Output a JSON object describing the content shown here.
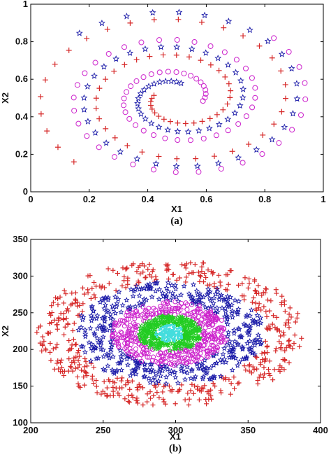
{
  "chart_data": [
    {
      "type": "scatter",
      "pattern": "interleaved-spirals",
      "caption": "(a)",
      "xlabel": "X1",
      "ylabel": "X2",
      "xlim": [
        0,
        1
      ],
      "ylim": [
        0,
        1
      ],
      "xticks": [
        "0",
        "0.2",
        "0.4",
        "0.6",
        "0.8",
        "1"
      ],
      "yticks": [
        "0",
        "0.2",
        "0.4",
        "0.6",
        "0.8",
        "1"
      ],
      "grid": false,
      "series": [
        {
          "marker": "plus",
          "color": "#d62828",
          "center": [
            0.5,
            0.5
          ],
          "r_range": [
            0.08,
            0.49
          ],
          "theta_start_deg": 170,
          "points": 70
        },
        {
          "marker": "circle",
          "color": "#cc22cc",
          "center": [
            0.5,
            0.5
          ],
          "r_range": [
            0.09,
            0.46
          ],
          "theta_start_deg": 350,
          "points": 70
        },
        {
          "marker": "star",
          "color": "#1a1aa8",
          "center": [
            0.5,
            0.5
          ],
          "r_range": [
            0.08,
            0.48
          ],
          "theta_start_deg": 80,
          "points": 70
        }
      ]
    },
    {
      "type": "scatter",
      "pattern": "concentric-rings",
      "caption": "(b)",
      "xlabel": "X1",
      "ylabel": "X2",
      "xlim": [
        200,
        400
      ],
      "ylim": [
        100,
        350
      ],
      "xticks": [
        "200",
        "250",
        "300",
        "350",
        "400"
      ],
      "yticks": [
        "100",
        "150",
        "200",
        "250",
        "300",
        "350"
      ],
      "grid": false,
      "series": [
        {
          "marker": "plus",
          "color": "#d62828",
          "center": [
            296,
            222
          ],
          "rx_range": [
            66,
            92
          ],
          "ry_range": [
            70,
            100
          ],
          "points": 480
        },
        {
          "marker": "star",
          "color": "#1a1aa8",
          "center": [
            296,
            222
          ],
          "rx_range": [
            40,
            66
          ],
          "ry_range": [
            44,
            70
          ],
          "points": 420
        },
        {
          "marker": "circle",
          "color": "#cc22cc",
          "center": [
            296,
            222
          ],
          "rx_range": [
            22,
            40
          ],
          "ry_range": [
            24,
            44
          ],
          "points": 380
        },
        {
          "marker": "star",
          "color": "#22cc22",
          "center": [
            296,
            222
          ],
          "rx_range": [
            10,
            22
          ],
          "ry_range": [
            12,
            24
          ],
          "points": 320
        },
        {
          "marker": "point",
          "color": "#44dddd",
          "center": [
            296,
            222
          ],
          "rx_range": [
            0,
            10
          ],
          "ry_range": [
            0,
            12
          ],
          "points": 200
        }
      ]
    }
  ]
}
